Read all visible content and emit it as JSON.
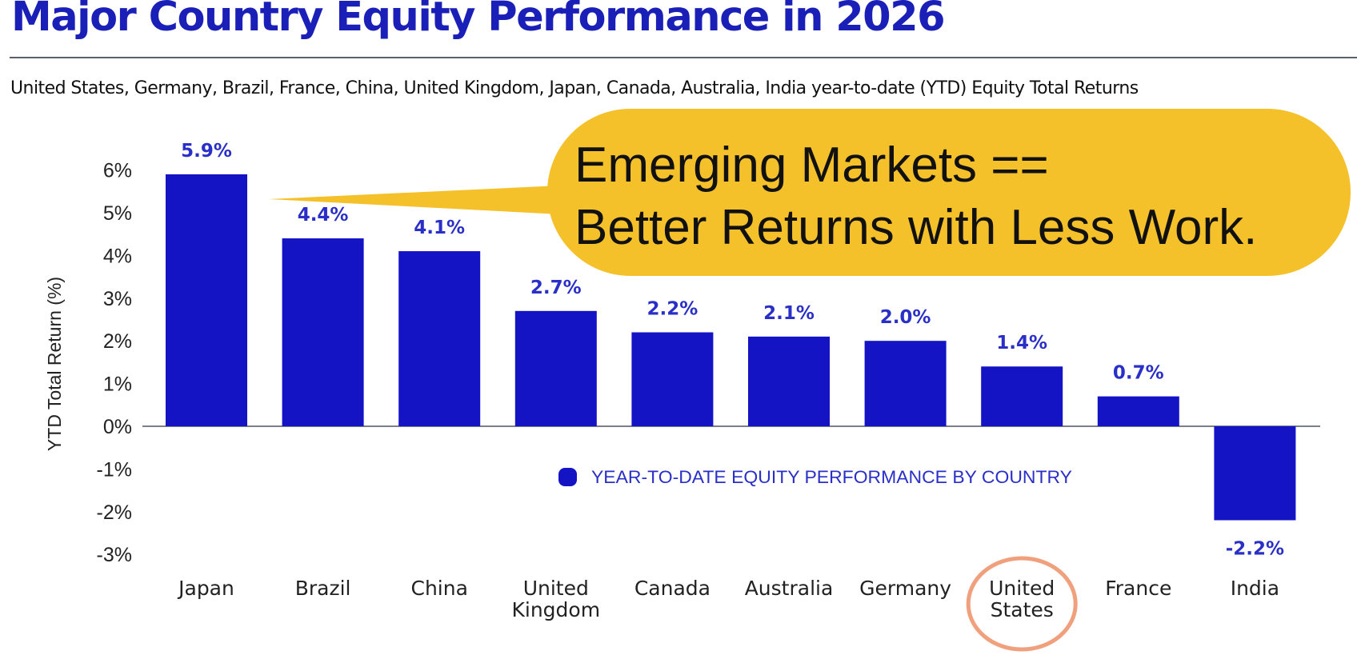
{
  "title": "Major Country Equity Performance in 2026",
  "subtitle": "United States, Germany, Brazil, France, China, United Kingdom, Japan, Canada, Australia, India year-to-date (YTD) Equity Total Returns",
  "callout": {
    "line1": "Emerging Markets ==",
    "line2": "Better Returns with Less Work."
  },
  "colors": {
    "bar": "#1414c4",
    "title": "#1a1fb8",
    "callout_fill": "#f5c12b",
    "highlight_ring": "#f0a07c"
  },
  "highlighted_category": "United States",
  "chart_data": {
    "type": "bar",
    "title": "",
    "xlabel": "",
    "ylabel": "YTD Total Return (%)",
    "ylim": [
      -3,
      6
    ],
    "yticks": [
      {
        "value": 6,
        "label": "6%"
      },
      {
        "value": 5,
        "label": "5%"
      },
      {
        "value": 4,
        "label": "4%"
      },
      {
        "value": 3,
        "label": "3%"
      },
      {
        "value": 2,
        "label": "2%"
      },
      {
        "value": 1,
        "label": "1%"
      },
      {
        "value": 0,
        "label": "0%"
      },
      {
        "value": -1,
        "label": "-1%"
      },
      {
        "value": -2,
        "label": "-2%"
      },
      {
        "value": -3,
        "label": "-3%"
      }
    ],
    "categories": [
      [
        "Japan"
      ],
      [
        "Brazil"
      ],
      [
        "China"
      ],
      [
        "United",
        "Kingdom"
      ],
      [
        "Canada"
      ],
      [
        "Australia"
      ],
      [
        "Germany"
      ],
      [
        "United",
        "States"
      ],
      [
        "France"
      ],
      [
        "India"
      ]
    ],
    "values": [
      5.9,
      4.4,
      4.1,
      2.7,
      2.2,
      2.1,
      2.0,
      1.4,
      0.7,
      -2.2
    ],
    "data_labels": [
      "5.9%",
      "4.4%",
      "4.1%",
      "2.7%",
      "2.2%",
      "2.1%",
      "2.0%",
      "1.4%",
      "0.7%",
      "-2.2%"
    ],
    "legend": {
      "label": "YEAR-TO-DATE EQUITY PERFORMANCE BY COUNTRY",
      "placement": "center"
    },
    "grid": false
  }
}
